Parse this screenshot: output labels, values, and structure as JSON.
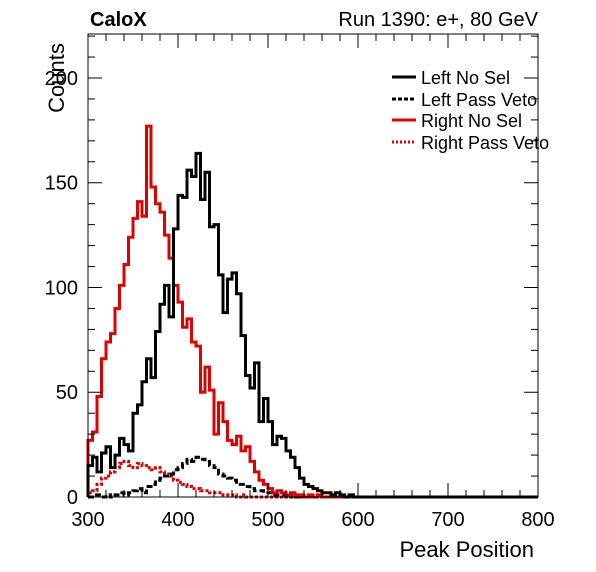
{
  "chart_data": {
    "type": "line",
    "style": "histogram-step",
    "title_left": "CaloX",
    "title_right": "Run 1390: e+, 80 GeV",
    "xlabel": "Peak Position",
    "ylabel": "Counts",
    "xlim": [
      300,
      800
    ],
    "ylim": [
      0,
      221
    ],
    "xticks": [
      "300",
      "400",
      "500",
      "600",
      "700",
      "800"
    ],
    "yticks": [
      "0",
      "50",
      "100",
      "150",
      "200"
    ],
    "xtick_values": [
      300,
      400,
      500,
      600,
      700,
      800
    ],
    "ytick_values": [
      0,
      50,
      100,
      150,
      200
    ],
    "grid": false,
    "legend_position": "top-right",
    "bin_width": 5,
    "bin_edges": [
      300,
      305,
      310,
      315,
      320,
      325,
      330,
      335,
      340,
      345,
      350,
      355,
      360,
      365,
      370,
      375,
      380,
      385,
      390,
      395,
      400,
      405,
      410,
      415,
      420,
      425,
      430,
      435,
      440,
      445,
      450,
      455,
      460,
      465,
      470,
      475,
      480,
      485,
      490,
      495,
      500,
      505,
      510,
      515,
      520,
      525,
      530,
      535,
      540,
      545,
      550,
      555,
      560,
      565,
      570,
      575,
      580,
      585,
      590,
      595,
      600
    ],
    "series": [
      {
        "name": "Left No Sel",
        "color": "#000000",
        "dash": "solid",
        "values": [
          15,
          19,
          12,
          21,
          24,
          14,
          20,
          28,
          25,
          22,
          40,
          44,
          55,
          66,
          57,
          79,
          92,
          101,
          86,
          128,
          144,
          143,
          156,
          153,
          164,
          142,
          155,
          129,
          130,
          106,
          88,
          104,
          107,
          97,
          77,
          58,
          52,
          64,
          36,
          47,
          36,
          25,
          29,
          28,
          22,
          19,
          14,
          9,
          6,
          5,
          4,
          3,
          2,
          2,
          1,
          2,
          1,
          0,
          1,
          0
        ]
      },
      {
        "name": "Left Pass Veto",
        "color": "#000000",
        "dash": "dashed",
        "values": [
          0,
          1,
          1,
          0,
          1,
          0,
          1,
          2,
          1,
          2,
          3,
          4,
          2,
          5,
          6,
          8,
          9,
          10,
          11,
          13,
          14,
          16,
          18,
          17,
          19,
          18,
          17,
          15,
          14,
          11,
          10,
          9,
          8,
          6,
          6,
          5,
          4,
          3,
          3,
          2,
          2,
          1,
          1,
          1,
          0,
          1,
          0,
          0,
          0,
          0,
          0,
          0,
          0,
          0,
          0,
          0,
          0,
          0,
          0,
          0
        ]
      },
      {
        "name": "Right No Sel",
        "color": "#e00000",
        "dash": "solid",
        "values": [
          27,
          31,
          48,
          66,
          74,
          78,
          90,
          101,
          111,
          124,
          133,
          141,
          134,
          177,
          148,
          140,
          136,
          125,
          114,
          101,
          93,
          81,
          85,
          74,
          72,
          50,
          62,
          51,
          30,
          45,
          36,
          27,
          25,
          29,
          22,
          24,
          17,
          12,
          8,
          6,
          4,
          2,
          3,
          2,
          1,
          2,
          1,
          1,
          0,
          1,
          0,
          1,
          0,
          0,
          0,
          0,
          0,
          0,
          0,
          0
        ]
      },
      {
        "name": "Right Pass Veto",
        "color": "#e00000",
        "dash": "dotted",
        "values": [
          2,
          3,
          6,
          9,
          10,
          12,
          14,
          16,
          17,
          15,
          14,
          16,
          15,
          14,
          13,
          14,
          12,
          11,
          10,
          8,
          7,
          6,
          5,
          4,
          4,
          3,
          3,
          2,
          2,
          2,
          1,
          1,
          1,
          0,
          1,
          0,
          0,
          0,
          0,
          0,
          0,
          0,
          0,
          0,
          0,
          0,
          0,
          0,
          0,
          0,
          0,
          0,
          0,
          0,
          0,
          0,
          0,
          0,
          0,
          0
        ]
      }
    ]
  }
}
